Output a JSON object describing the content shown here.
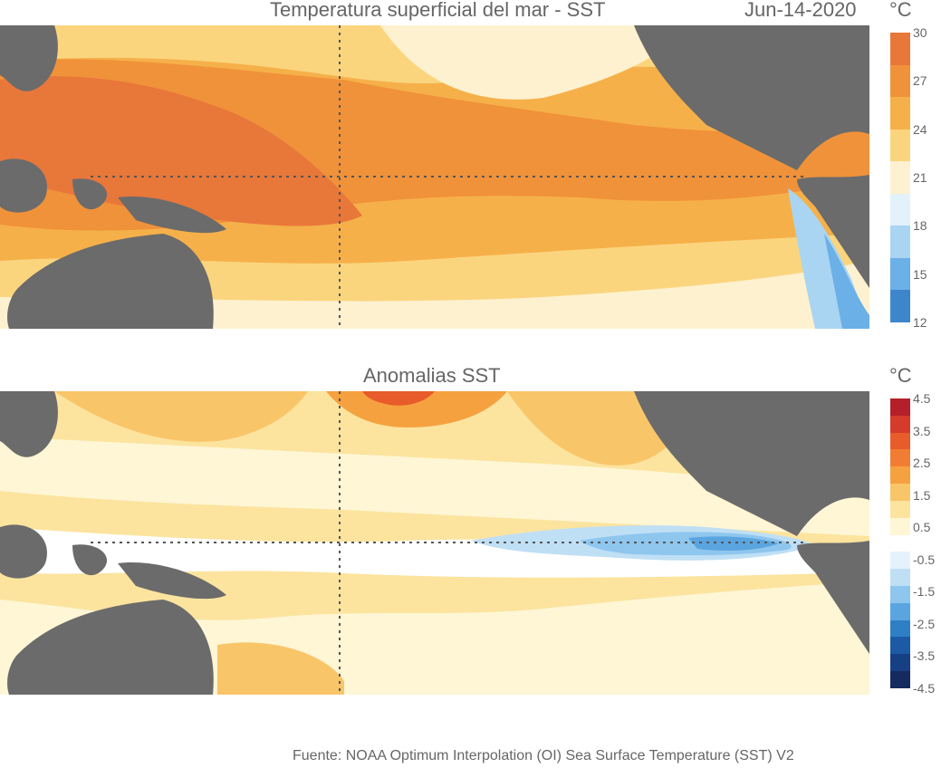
{
  "top": {
    "title": "Temperatura superficial del mar - SST",
    "date": "Jun-14-2020",
    "unit": "°C",
    "colorbar": {
      "ticks": [
        "30",
        "27",
        "24",
        "21",
        "18",
        "15",
        "12"
      ],
      "colors": [
        "#e8773a",
        "#f0923a",
        "#f6b04a",
        "#fbd57e",
        "#fdf1cf",
        "#e3f1fa",
        "#a9d5f2",
        "#6bb0e6",
        "#3d86cc"
      ]
    }
  },
  "bottom": {
    "title": "Anomalias SST",
    "unit": "°C",
    "colorbar": {
      "ticks": [
        "4.5",
        "3.5",
        "2.5",
        "1.5",
        "0.5",
        "-0.5",
        "-1.5",
        "-2.5",
        "-3.5",
        "-4.5"
      ],
      "colors": [
        "#b3202a",
        "#d63a2a",
        "#e85b2b",
        "#f07d33",
        "#f6a13f",
        "#f9c569",
        "#fce49f",
        "#fef6d5",
        "#ffffff",
        "#e6f2fb",
        "#bfdff5",
        "#8ec6ee",
        "#5aa5df",
        "#2f7fc6",
        "#1d5aa6",
        "#173f84",
        "#152a5e"
      ]
    }
  },
  "source": "Fuente: NOAA Optimum Interpolation (OI) Sea Surface Temperature (SST) V2"
}
